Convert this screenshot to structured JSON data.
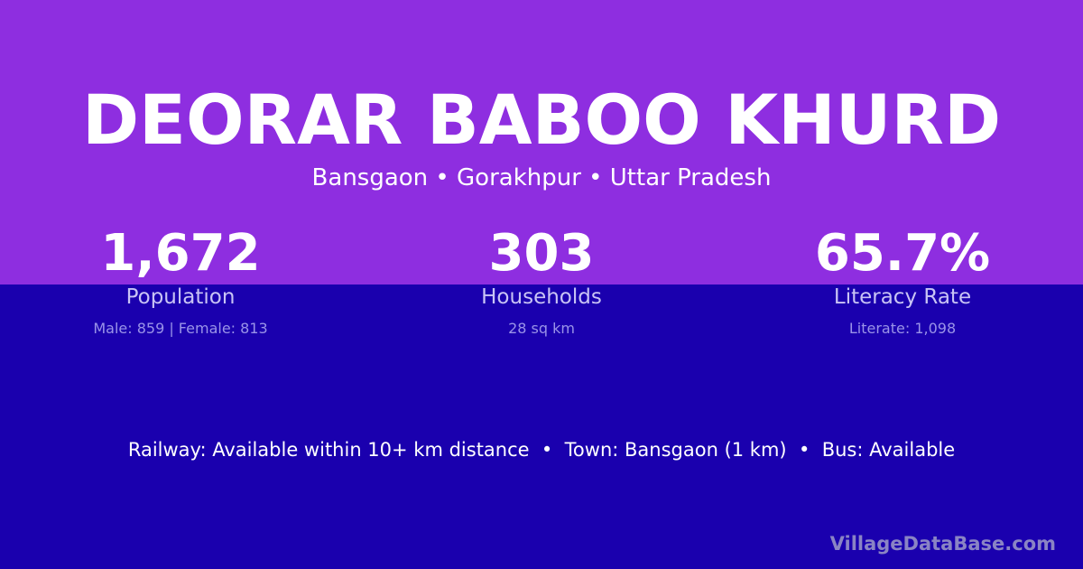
{
  "colors": {
    "top_band": "#8e2ee0",
    "bottom_band": "#1a00ae"
  },
  "title": "DEORAR BABOO KHURD",
  "subtitle": "Bansgaon • Gorakhpur • Uttar Pradesh",
  "stats": [
    {
      "value": "1,672",
      "label": "Population",
      "detail": "Male: 859 | Female: 813"
    },
    {
      "value": "303",
      "label": "Households",
      "detail": "28 sq km"
    },
    {
      "value": "65.7%",
      "label": "Literacy Rate",
      "detail": "Literate: 1,098"
    }
  ],
  "info": "Railway: Available within 10+ km distance  •  Town: Bansgaon (1 km)  •  Bus: Available",
  "brand": "VillageDataBase.com"
}
